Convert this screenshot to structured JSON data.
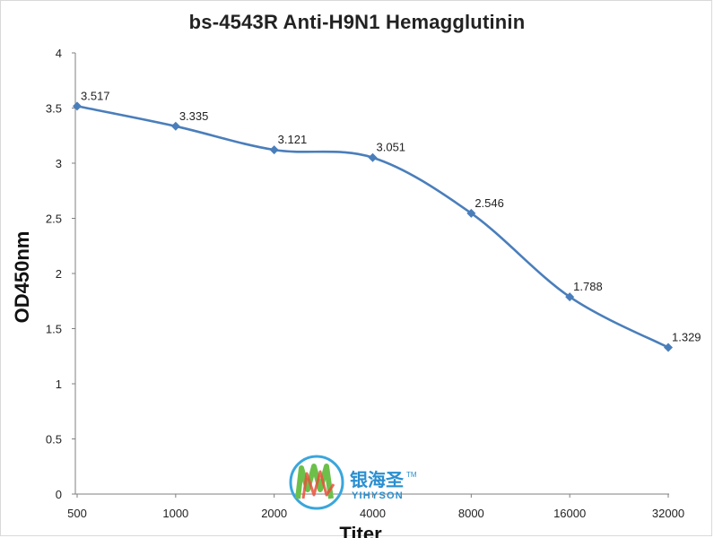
{
  "chart_data": {
    "type": "line",
    "title": "bs-4543R Anti-H9N1 Hemagglutinin",
    "xlabel": "Titer",
    "ylabel": "OD450nm",
    "categories": [
      "500",
      "1000",
      "2000",
      "4000",
      "8000",
      "16000",
      "32000"
    ],
    "series": [
      {
        "values": [
          3.517,
          3.335,
          3.121,
          3.051,
          2.546,
          1.788,
          1.329
        ],
        "labels": [
          "3.517",
          "3.335",
          "3.121",
          "3.051",
          "2.546",
          "1.788",
          "1.329"
        ]
      }
    ],
    "ylim": [
      0,
      4
    ],
    "yticks": [
      "0",
      "0.5",
      "1",
      "1.5",
      "2",
      "2.5",
      "3",
      "3.5",
      "4"
    ],
    "grid": false,
    "smooth": true,
    "line_color": "#4a7ebb"
  },
  "watermark": {
    "brand_cn": "银海圣",
    "brand_en": "YIHYSON",
    "trademark": "TM"
  }
}
